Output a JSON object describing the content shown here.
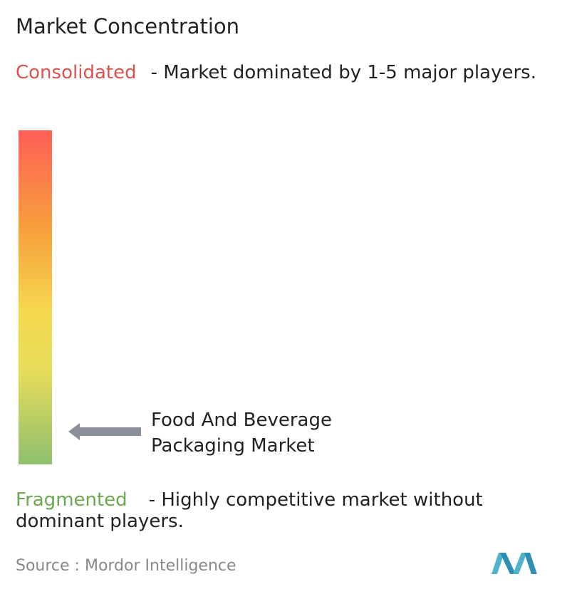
{
  "title": "Market Concentration",
  "consolidated": {
    "label": "Consolidated",
    "description": "- Market dominated by 1-5 major players."
  },
  "marker": {
    "label": "Food And Beverage Packaging Market"
  },
  "fragmented": {
    "label": "Fragmented",
    "description": "- Highly competitive market without dominant players."
  },
  "source": "Source :  Mordor Intelligence"
}
